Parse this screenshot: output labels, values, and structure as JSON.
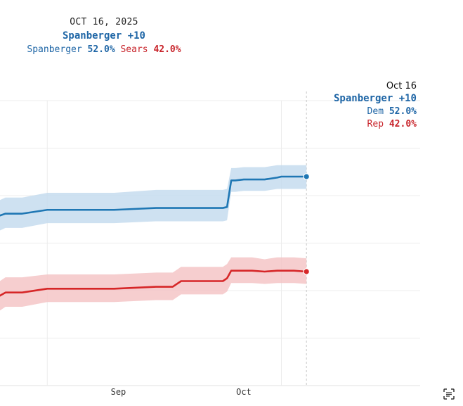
{
  "summary": {
    "date": "OCT 16, 2025",
    "leader": "Spanberger +10",
    "dem_name": "Spanberger",
    "dem_value": "52.0%",
    "rep_name": "Sears",
    "rep_value": "42.0%"
  },
  "tooltip": {
    "date": "Oct 16",
    "leader": "Spanberger +10",
    "dem_label": "Dem",
    "dem_value": "52.0%",
    "rep_label": "Rep",
    "rep_value": "42.0%"
  },
  "colors": {
    "dem": "#1f77b4",
    "dem_band": "#c6dcee",
    "rep": "#d62728",
    "rep_band": "#f5c6c7",
    "grid": "#ececec"
  },
  "icon": "scan-icon",
  "chart_data": {
    "type": "line",
    "x_ticks": [
      "Sep",
      "Oct"
    ],
    "grid": true,
    "series": [
      {
        "name": "Dem",
        "x": [
          "Aug 3",
          "Aug 5",
          "Aug 9",
          "Aug 15",
          "Aug 17",
          "Aug 22",
          "Aug 27",
          "Aug 31",
          "Sep 10",
          "Sep 14",
          "Sep 16",
          "Sep 18",
          "Sep 26",
          "Sep 27",
          "Sep 28",
          "Sep 29",
          "Oct 1",
          "Oct 3",
          "Oct 6",
          "Oct 9",
          "Oct 10",
          "Oct 13",
          "Oct 16"
        ],
        "values": [
          47.8,
          48.1,
          48.1,
          48.5,
          48.5,
          48.5,
          48.5,
          48.5,
          48.7,
          48.7,
          48.7,
          48.7,
          48.7,
          48.8,
          51.6,
          51.6,
          51.7,
          51.7,
          51.7,
          51.9,
          52.0,
          52.0,
          52.0
        ],
        "upper": [
          49.4,
          49.8,
          49.8,
          50.3,
          50.3,
          50.3,
          50.3,
          50.3,
          50.6,
          50.6,
          50.6,
          50.6,
          50.6,
          50.7,
          52.9,
          52.9,
          53.0,
          53.0,
          53.0,
          53.2,
          53.2,
          53.2,
          53.2
        ],
        "lower": [
          46.2,
          46.6,
          46.6,
          47.1,
          47.1,
          47.1,
          47.1,
          47.1,
          47.3,
          47.3,
          47.3,
          47.3,
          47.3,
          47.4,
          50.4,
          50.4,
          50.5,
          50.5,
          50.5,
          50.7,
          50.7,
          50.7,
          50.7
        ]
      },
      {
        "name": "Rep",
        "x": [
          "Aug 3",
          "Aug 5",
          "Aug 9",
          "Aug 15",
          "Aug 17",
          "Aug 22",
          "Aug 27",
          "Aug 31",
          "Sep 10",
          "Sep 14",
          "Sep 16",
          "Sep 18",
          "Sep 26",
          "Sep 27",
          "Sep 28",
          "Sep 29",
          "Oct 1",
          "Oct 3",
          "Oct 6",
          "Oct 9",
          "Oct 10",
          "Oct 13",
          "Oct 16"
        ],
        "values": [
          39.3,
          39.8,
          39.8,
          40.2,
          40.2,
          40.2,
          40.2,
          40.2,
          40.4,
          40.4,
          41.0,
          41.0,
          41.0,
          41.3,
          42.1,
          42.1,
          42.1,
          42.1,
          42.0,
          42.1,
          42.1,
          42.1,
          42.0
        ],
        "upper": [
          40.8,
          41.4,
          41.4,
          41.7,
          41.7,
          41.7,
          41.7,
          41.7,
          41.9,
          41.9,
          42.5,
          42.5,
          42.5,
          42.8,
          43.5,
          43.5,
          43.5,
          43.5,
          43.3,
          43.5,
          43.5,
          43.5,
          43.4
        ],
        "lower": [
          37.7,
          38.3,
          38.3,
          38.8,
          38.8,
          38.8,
          38.8,
          38.8,
          39.0,
          39.0,
          39.6,
          39.6,
          39.6,
          39.9,
          40.8,
          40.8,
          40.8,
          40.8,
          40.7,
          40.8,
          40.8,
          40.8,
          40.7
        ]
      }
    ]
  }
}
